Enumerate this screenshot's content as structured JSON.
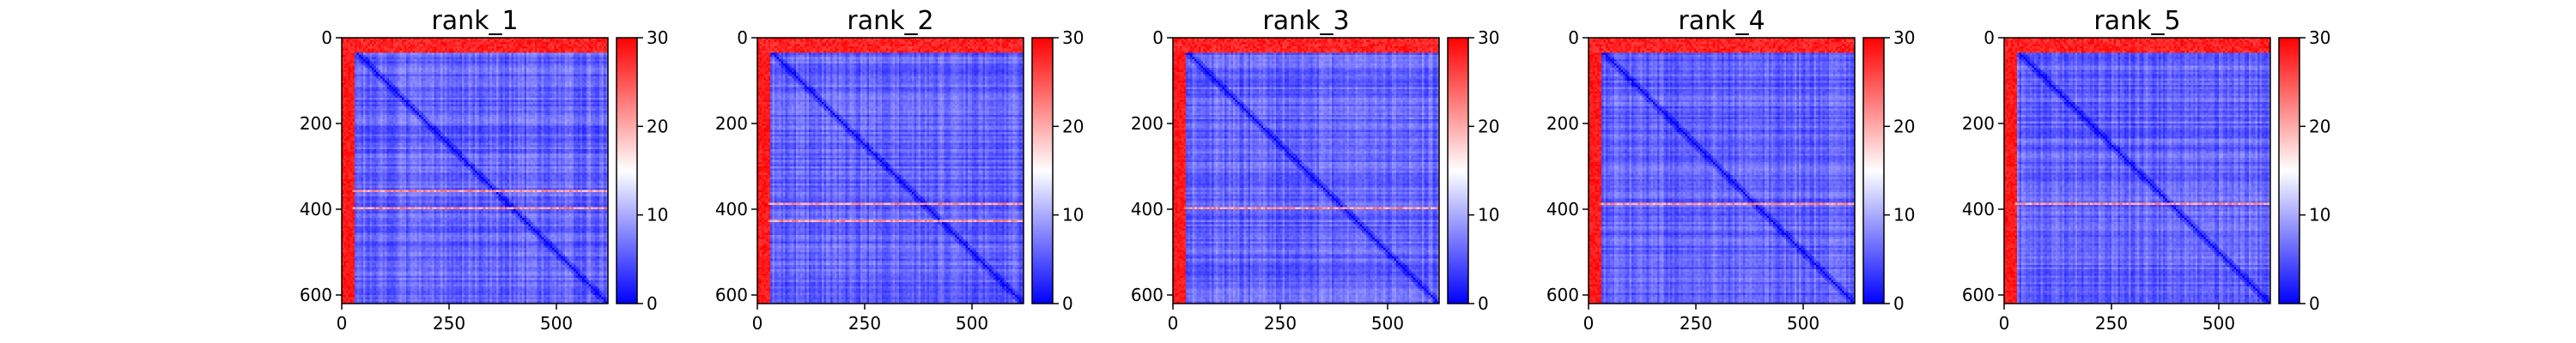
{
  "chart_data": {
    "type": "heatmap",
    "colormap": "bwr",
    "colors": {
      "low": "#0000ff",
      "mid": "#ffffff",
      "high": "#ff0000"
    },
    "value_range": [
      0,
      30
    ],
    "axes": {
      "x_ticks": [
        0,
        250,
        500
      ],
      "y_ticks": [
        0,
        200,
        400,
        600
      ],
      "x_range": [
        0,
        620
      ],
      "y_range": [
        620,
        0
      ]
    },
    "colorbar": {
      "ticks": [
        0,
        10,
        20,
        30
      ]
    },
    "panels": [
      {
        "title": "rank_1",
        "red_rows": [
          355,
          395
        ],
        "red_cols": [
          0,
          15
        ]
      },
      {
        "title": "rank_2",
        "red_rows": [
          385,
          425
        ],
        "red_cols": [
          0,
          15
        ]
      },
      {
        "title": "rank_3",
        "red_rows": [
          395
        ],
        "red_cols": [
          0,
          15
        ]
      },
      {
        "title": "rank_4",
        "red_rows": [
          385
        ],
        "red_cols": [
          0,
          15
        ]
      },
      {
        "title": "rank_5",
        "red_rows": [
          385
        ],
        "red_cols": [
          0,
          15
        ]
      }
    ]
  }
}
